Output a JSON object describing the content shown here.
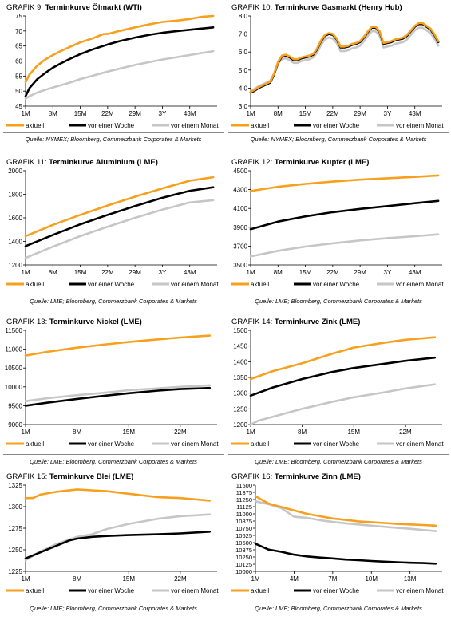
{
  "legend_labels": [
    "aktuell",
    "vor einer Woche",
    "vor einem Monat"
  ],
  "colors": {
    "aktuell": "#f7a01d",
    "woche": "#000000",
    "monat": "#c6c6c6"
  },
  "chart_data": [
    {
      "type": "line",
      "number": "GRAFIK 9:",
      "title": "Terminkurve Ölmarkt (WTI)",
      "source": "Quelle: NYMEX; Bloomberg, Commerzbank Corporates & Markets",
      "xlabels": [
        "1M",
        "8M",
        "15M",
        "22M",
        "29M",
        "3Y",
        "43M"
      ],
      "xlim": [
        1,
        50
      ],
      "ylim": [
        45,
        75
      ],
      "yticks": [
        45,
        50,
        55,
        60,
        65,
        70,
        75
      ],
      "series": [
        {
          "name": "aktuell",
          "x": [
            1,
            2,
            4,
            6,
            8,
            10,
            12,
            15,
            18,
            20,
            21,
            22,
            25,
            29,
            33,
            36,
            40,
            43,
            46,
            49
          ],
          "y": [
            53,
            55.5,
            58.5,
            60.5,
            62,
            63.3,
            64.5,
            66.2,
            67.5,
            68.5,
            69,
            69,
            70,
            71.2,
            72.3,
            73,
            73.5,
            74,
            74.7,
            75
          ]
        },
        {
          "name": "vor einer Woche",
          "x": [
            1,
            2,
            4,
            6,
            8,
            10,
            12,
            15,
            18,
            22,
            25,
            29,
            33,
            36,
            40,
            43,
            46,
            49
          ],
          "y": [
            48.3,
            51,
            54,
            56,
            57.8,
            59.2,
            60.5,
            62.3,
            63.8,
            65.5,
            66.6,
            67.8,
            68.8,
            69.4,
            70,
            70.4,
            70.8,
            71.2
          ]
        },
        {
          "name": "vor einem Monat",
          "x": [
            1,
            2,
            4,
            6,
            8,
            12,
            15,
            22,
            29,
            36,
            43,
            49
          ],
          "y": [
            47.5,
            48.3,
            49.5,
            50.4,
            51.2,
            52.7,
            54,
            56.5,
            58.7,
            60.5,
            62,
            63.3
          ]
        }
      ]
    },
    {
      "type": "line",
      "number": "GRAFIK 10:",
      "title": "Terminkurve Gasmarkt (Henry Hub)",
      "source": "Quelle: NYMEX; Bloomberg, Commerzbank Corporates & Markets",
      "xlabels": [
        "1M",
        "8M",
        "15M",
        "22M",
        "29M",
        "3Y",
        "43M"
      ],
      "xlim": [
        1,
        50
      ],
      "ylim": [
        3,
        8
      ],
      "yticks": [
        3.0,
        4.0,
        5.0,
        6.0,
        7.0,
        8.0
      ],
      "series": [
        {
          "name": "aktuell",
          "x": [
            1,
            2,
            3,
            4,
            5,
            6,
            7,
            8,
            9,
            10,
            11,
            12,
            13,
            14,
            15,
            16,
            17,
            18,
            19,
            20,
            21,
            22,
            23,
            24,
            25,
            26,
            27,
            28,
            29,
            30,
            31,
            32,
            33,
            34,
            35,
            36,
            37,
            38,
            39,
            40,
            41,
            42,
            43,
            44,
            45,
            46,
            47,
            48,
            49
          ],
          "y": [
            3.8,
            3.9,
            4.05,
            4.15,
            4.25,
            4.35,
            4.8,
            5.45,
            5.8,
            5.85,
            5.75,
            5.6,
            5.6,
            5.7,
            5.75,
            5.8,
            5.9,
            6.2,
            6.65,
            6.95,
            7.05,
            7.0,
            6.75,
            6.3,
            6.3,
            6.35,
            6.45,
            6.5,
            6.6,
            6.85,
            7.15,
            7.4,
            7.4,
            7.15,
            6.5,
            6.55,
            6.6,
            6.7,
            6.75,
            6.8,
            6.95,
            7.2,
            7.45,
            7.6,
            7.6,
            7.45,
            7.3,
            7.0,
            6.6
          ]
        },
        {
          "name": "vor einer Woche",
          "x": [
            1,
            2,
            3,
            4,
            5,
            6,
            7,
            8,
            9,
            10,
            11,
            12,
            13,
            14,
            15,
            16,
            17,
            18,
            19,
            20,
            21,
            22,
            23,
            24,
            25,
            26,
            27,
            28,
            29,
            30,
            31,
            32,
            33,
            34,
            35,
            36,
            37,
            38,
            39,
            40,
            41,
            42,
            43,
            44,
            45,
            46,
            47,
            48,
            49
          ],
          "y": [
            3.75,
            3.85,
            4.0,
            4.1,
            4.2,
            4.3,
            4.75,
            5.4,
            5.75,
            5.8,
            5.7,
            5.55,
            5.55,
            5.65,
            5.7,
            5.75,
            5.85,
            6.15,
            6.6,
            6.9,
            7.0,
            6.95,
            6.7,
            6.25,
            6.25,
            6.3,
            6.4,
            6.45,
            6.55,
            6.8,
            7.1,
            7.35,
            7.35,
            7.1,
            6.45,
            6.5,
            6.55,
            6.65,
            6.7,
            6.75,
            6.9,
            7.15,
            7.4,
            7.55,
            7.55,
            7.4,
            7.25,
            6.95,
            6.55
          ]
        },
        {
          "name": "vor einem Monat",
          "x": [
            1,
            2,
            3,
            4,
            5,
            6,
            7,
            8,
            9,
            10,
            11,
            12,
            13,
            14,
            15,
            16,
            17,
            18,
            19,
            20,
            21,
            22,
            23,
            24,
            25,
            26,
            27,
            28,
            29,
            30,
            31,
            32,
            33,
            34,
            35,
            36,
            37,
            38,
            39,
            40,
            41,
            42,
            43,
            44,
            45,
            46,
            47,
            48,
            49
          ],
          "y": [
            3.8,
            3.95,
            4.1,
            4.2,
            4.3,
            4.4,
            4.8,
            5.35,
            5.6,
            5.65,
            5.55,
            5.4,
            5.4,
            5.5,
            5.55,
            5.6,
            5.7,
            5.95,
            6.4,
            6.7,
            6.8,
            6.75,
            6.5,
            6.05,
            6.05,
            6.1,
            6.2,
            6.25,
            6.35,
            6.6,
            6.9,
            7.15,
            7.15,
            6.9,
            6.25,
            6.3,
            6.35,
            6.45,
            6.5,
            6.55,
            6.7,
            6.95,
            7.2,
            7.35,
            7.35,
            7.2,
            7.05,
            6.75,
            6.35
          ]
        }
      ]
    },
    {
      "type": "line",
      "number": "GRAFIK 11:",
      "title": "Terminkurve Aluminium (LME)",
      "source": "Quelle: LME; Bloomberg, Commerzbank Corporates & Markets",
      "xlabels": [
        "1M",
        "8M",
        "15M",
        "22M",
        "29M",
        "3Y",
        "43M"
      ],
      "xlim": [
        1,
        50
      ],
      "ylim": [
        1200,
        2000
      ],
      "yticks": [
        1200,
        1400,
        1600,
        1800,
        2000
      ],
      "series": [
        {
          "name": "aktuell",
          "x": [
            1,
            8,
            15,
            22,
            29,
            36,
            43,
            49
          ],
          "y": [
            1445,
            1540,
            1625,
            1705,
            1780,
            1850,
            1915,
            1945
          ]
        },
        {
          "name": "vor einer Woche",
          "x": [
            1,
            8,
            15,
            22,
            29,
            36,
            43,
            49
          ],
          "y": [
            1360,
            1455,
            1545,
            1625,
            1700,
            1770,
            1830,
            1860
          ]
        },
        {
          "name": "vor einem Monat",
          "x": [
            1,
            8,
            15,
            22,
            29,
            36,
            43,
            49
          ],
          "y": [
            1260,
            1355,
            1445,
            1525,
            1600,
            1670,
            1730,
            1750
          ]
        }
      ]
    },
    {
      "type": "line",
      "number": "GRAFIK 12:",
      "title": "Terminkurve Kupfer (LME)",
      "source": "Quelle: LME; Bloomberg, Commerzbank Corporates & Markets",
      "xlabels": [
        "1M",
        "8M",
        "15M",
        "22M",
        "29M",
        "3Y",
        "43M"
      ],
      "xlim": [
        1,
        50
      ],
      "ylim": [
        3500,
        4500
      ],
      "yticks": [
        3500,
        3700,
        3900,
        4100,
        4300,
        4500
      ],
      "series": [
        {
          "name": "aktuell",
          "x": [
            1,
            8,
            15,
            22,
            29,
            36,
            43,
            49
          ],
          "y": [
            4285,
            4330,
            4360,
            4385,
            4405,
            4420,
            4435,
            4450
          ]
        },
        {
          "name": "vor einer Woche",
          "x": [
            1,
            8,
            15,
            22,
            29,
            36,
            43,
            49
          ],
          "y": [
            3880,
            3960,
            4015,
            4060,
            4095,
            4125,
            4155,
            4180
          ]
        },
        {
          "name": "vor einem Monat",
          "x": [
            1,
            8,
            15,
            22,
            29,
            36,
            43,
            49
          ],
          "y": [
            3590,
            3650,
            3695,
            3730,
            3760,
            3785,
            3805,
            3825
          ]
        }
      ]
    },
    {
      "type": "line",
      "number": "GRAFIK 13:",
      "title": "Terminkurve Nickel (LME)",
      "source": "Quelle: LME; Bloomberg, Commerzbank Corporates & Markets",
      "xlabels": [
        "1M",
        "8M",
        "15M",
        "22M"
      ],
      "xlim": [
        1,
        27
      ],
      "ylim": [
        9000,
        11500
      ],
      "yticks": [
        9000,
        9500,
        10000,
        10500,
        11000,
        11500
      ],
      "series": [
        {
          "name": "aktuell",
          "x": [
            1,
            4,
            8,
            12,
            15,
            19,
            22,
            26
          ],
          "y": [
            10830,
            10930,
            11040,
            11130,
            11190,
            11260,
            11310,
            11360
          ]
        },
        {
          "name": "vor einer Woche",
          "x": [
            1,
            4,
            8,
            12,
            15,
            19,
            22,
            26
          ],
          "y": [
            9500,
            9580,
            9680,
            9770,
            9830,
            9900,
            9940,
            9970
          ]
        },
        {
          "name": "vor einem Monat",
          "x": [
            1,
            4,
            8,
            12,
            15,
            19,
            22,
            26
          ],
          "y": [
            9620,
            9700,
            9780,
            9850,
            9910,
            9960,
            10000,
            10040
          ]
        }
      ]
    },
    {
      "type": "line",
      "number": "GRAFIK 14:",
      "title": "Terminkurve Zink (LME)",
      "source": "Quelle: LME; Bloomberg, Commerzbank Corporates & Markets",
      "xlabels": [
        "1M",
        "8M",
        "15M",
        "22M"
      ],
      "xlim": [
        1,
        27
      ],
      "ylim": [
        1200,
        1500
      ],
      "yticks": [
        1200,
        1250,
        1300,
        1350,
        1400,
        1450,
        1500
      ],
      "series": [
        {
          "name": "aktuell",
          "x": [
            1,
            4,
            8,
            12,
            15,
            19,
            22,
            26
          ],
          "y": [
            1345,
            1370,
            1395,
            1425,
            1445,
            1460,
            1470,
            1478
          ]
        },
        {
          "name": "vor einer Woche",
          "x": [
            1,
            4,
            8,
            12,
            15,
            19,
            22,
            26
          ],
          "y": [
            1292,
            1318,
            1345,
            1367,
            1380,
            1393,
            1403,
            1413
          ]
        },
        {
          "name": "vor einem Monat",
          "x": [
            1,
            2,
            4,
            8,
            12,
            15,
            19,
            22,
            26
          ],
          "y": [
            1200,
            1212,
            1225,
            1250,
            1272,
            1287,
            1302,
            1315,
            1328
          ]
        }
      ]
    },
    {
      "type": "line",
      "number": "GRAFIK 15:",
      "title": "Terminkurve Blei (LME)",
      "source": "Quelle: LME; Bloomberg, Commerzbank Corporates & Markets",
      "xlabels": [
        "1M",
        "8M",
        "15M",
        "22M"
      ],
      "xlim": [
        1,
        27
      ],
      "ylim": [
        1225,
        1325
      ],
      "yticks": [
        1225,
        1250,
        1275,
        1300,
        1325
      ],
      "series": [
        {
          "name": "aktuell",
          "x": [
            1,
            2,
            3,
            5,
            8,
            10,
            12,
            15,
            19,
            22,
            26
          ],
          "y": [
            1310,
            1310,
            1314,
            1317,
            1320,
            1319,
            1318,
            1315,
            1311,
            1310,
            1307
          ]
        },
        {
          "name": "vor einer Woche",
          "x": [
            1,
            3,
            5,
            7,
            8,
            10,
            12,
            15,
            19,
            22,
            26
          ],
          "y": [
            1240,
            1247,
            1254,
            1261,
            1263,
            1265,
            1266,
            1267,
            1268,
            1269,
            1271
          ]
        },
        {
          "name": "vor einem Monat",
          "x": [
            1,
            3,
            5,
            7,
            8,
            10,
            12,
            15,
            19,
            22,
            26
          ],
          "y": [
            1238,
            1248,
            1256,
            1262,
            1265,
            1268,
            1274,
            1280,
            1286,
            1289,
            1291
          ]
        }
      ]
    },
    {
      "type": "line",
      "number": "GRAFIK 16:",
      "title": "Terminkurve Zinn (LME)",
      "source": "Quelle: LME; Bloomberg, Commerzbank Corporates & Markets",
      "xlabels": [
        "1M",
        "4M",
        "7M",
        "10M",
        "13M"
      ],
      "xlim": [
        1,
        15.5
      ],
      "ylim": [
        10000,
        11500
      ],
      "yticks": [
        10000,
        10125,
        10250,
        10375,
        10500,
        10625,
        10750,
        10875,
        11000,
        11125,
        11250,
        11375,
        11500
      ],
      "ytick_labels": [
        "10000",
        "10125",
        "10250",
        "10375",
        "10500",
        "10625",
        "10750",
        "10875",
        "11000",
        "11125",
        "11250",
        "11375",
        "11500"
      ],
      "series": [
        {
          "name": "aktuell",
          "x": [
            1,
            2,
            3,
            4,
            5,
            6,
            7,
            8,
            9,
            10,
            11,
            12,
            13,
            14,
            15
          ],
          "y": [
            11310,
            11180,
            11120,
            11060,
            11000,
            10960,
            10920,
            10895,
            10870,
            10855,
            10840,
            10825,
            10815,
            10805,
            10795
          ]
        },
        {
          "name": "vor einer Woche",
          "x": [
            1,
            2,
            3,
            4,
            5,
            6,
            7,
            8,
            9,
            10,
            11,
            12,
            13,
            14,
            15
          ],
          "y": [
            10480,
            10380,
            10340,
            10290,
            10260,
            10240,
            10225,
            10205,
            10195,
            10180,
            10170,
            10160,
            10150,
            10145,
            10135
          ]
        },
        {
          "name": "vor einem Monat",
          "x": [
            1,
            2,
            3,
            4,
            5,
            6,
            7,
            8,
            9,
            10,
            11,
            12,
            13,
            14,
            15
          ],
          "y": [
            11220,
            11170,
            11100,
            10950,
            10930,
            10890,
            10860,
            10835,
            10815,
            10795,
            10775,
            10755,
            10740,
            10720,
            10700
          ]
        }
      ]
    }
  ]
}
